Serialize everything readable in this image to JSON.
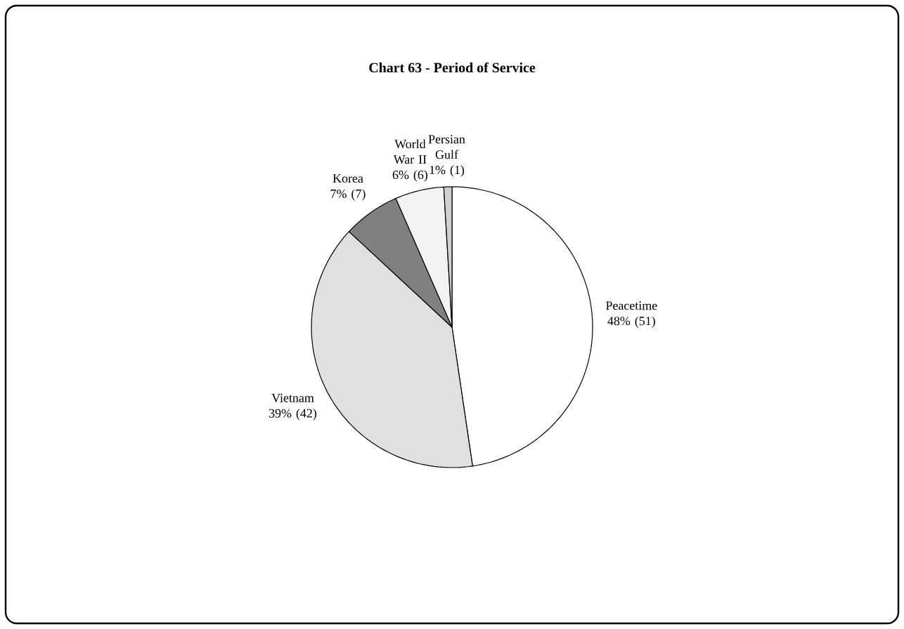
{
  "chart_data": {
    "type": "pie",
    "title": "Chart 63 - Period of Service",
    "categories": [
      "Peacetime",
      "Vietnam",
      "Korea",
      "World War II",
      "Persian Gulf"
    ],
    "values": [
      51,
      42,
      7,
      6,
      1
    ],
    "value_labels": [
      "48% (51)",
      "39% (42)",
      "7% (7)",
      "6% (6)",
      "1% (1)"
    ],
    "colors": [
      "#ffffff",
      "#e0e0e0",
      "#808080",
      "#f2f2f2",
      "#d0d0d0"
    ]
  }
}
